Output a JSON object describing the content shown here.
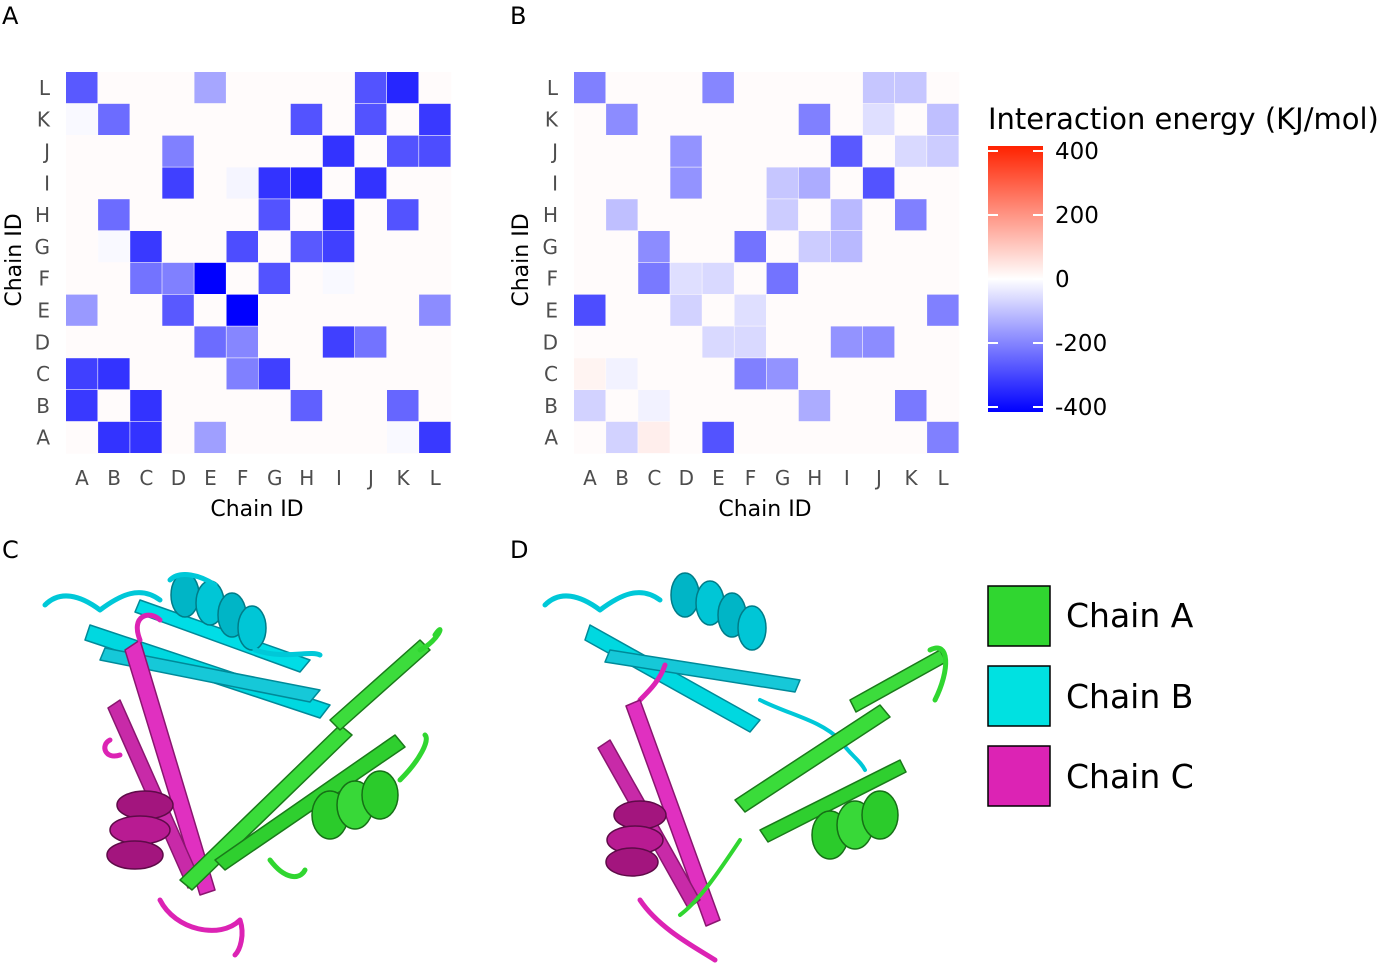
{
  "panels": {
    "a": "A",
    "b": "B",
    "c": "C",
    "d": "D"
  },
  "colorbar": {
    "title": "Interaction energy (KJ/mol)",
    "ticks": [
      "400",
      "200",
      "0",
      "-200",
      "-400"
    ],
    "colors": {
      "low": "#0000ff",
      "mid": "#ffffff",
      "high": "#ff2200"
    }
  },
  "legend": {
    "items": [
      {
        "label": "Chain A",
        "color": "#30d630"
      },
      {
        "label": "Chain B",
        "color": "#00e1e1"
      },
      {
        "label": "Chain C",
        "color": "#dc23b4"
      }
    ]
  },
  "chart_data": [
    {
      "type": "heatmap",
      "panel": "A",
      "xlabel": "Chain ID",
      "ylabel": "Chain ID",
      "categories": [
        "A",
        "B",
        "C",
        "D",
        "E",
        "F",
        "G",
        "H",
        "I",
        "J",
        "K",
        "L"
      ],
      "value_range": [
        -400,
        400
      ],
      "cells": [
        {
          "x": "A",
          "y": "L",
          "value": -260
        },
        {
          "x": "E",
          "y": "L",
          "value": -140
        },
        {
          "x": "J",
          "y": "L",
          "value": -270
        },
        {
          "x": "K",
          "y": "L",
          "value": -340
        },
        {
          "x": "A",
          "y": "K",
          "value": -10
        },
        {
          "x": "B",
          "y": "K",
          "value": -230
        },
        {
          "x": "H",
          "y": "K",
          "value": -270
        },
        {
          "x": "J",
          "y": "K",
          "value": -270
        },
        {
          "x": "L",
          "y": "K",
          "value": -310
        },
        {
          "x": "D",
          "y": "J",
          "value": -200
        },
        {
          "x": "I",
          "y": "J",
          "value": -320
        },
        {
          "x": "K",
          "y": "J",
          "value": -270
        },
        {
          "x": "L",
          "y": "J",
          "value": -280
        },
        {
          "x": "D",
          "y": "I",
          "value": -300
        },
        {
          "x": "F",
          "y": "I",
          "value": -15
        },
        {
          "x": "G",
          "y": "I",
          "value": -320
        },
        {
          "x": "H",
          "y": "I",
          "value": -340
        },
        {
          "x": "J",
          "y": "I",
          "value": -320
        },
        {
          "x": "B",
          "y": "H",
          "value": -230
        },
        {
          "x": "G",
          "y": "H",
          "value": -270
        },
        {
          "x": "I",
          "y": "H",
          "value": -330
        },
        {
          "x": "K",
          "y": "H",
          "value": -270
        },
        {
          "x": "B",
          "y": "G",
          "value": -10
        },
        {
          "x": "C",
          "y": "G",
          "value": -310
        },
        {
          "x": "F",
          "y": "G",
          "value": -280
        },
        {
          "x": "H",
          "y": "G",
          "value": -260
        },
        {
          "x": "I",
          "y": "G",
          "value": -300
        },
        {
          "x": "C",
          "y": "F",
          "value": -220
        },
        {
          "x": "D",
          "y": "F",
          "value": -200
        },
        {
          "x": "E",
          "y": "F",
          "value": -400
        },
        {
          "x": "G",
          "y": "F",
          "value": -270
        },
        {
          "x": "I",
          "y": "F",
          "value": -10
        },
        {
          "x": "A",
          "y": "E",
          "value": -160
        },
        {
          "x": "D",
          "y": "E",
          "value": -260
        },
        {
          "x": "F",
          "y": "E",
          "value": -400
        },
        {
          "x": "L",
          "y": "E",
          "value": -180
        },
        {
          "x": "E",
          "y": "D",
          "value": -230
        },
        {
          "x": "F",
          "y": "D",
          "value": -190
        },
        {
          "x": "I",
          "y": "D",
          "value": -300
        },
        {
          "x": "J",
          "y": "D",
          "value": -220
        },
        {
          "x": "A",
          "y": "C",
          "value": -300
        },
        {
          "x": "B",
          "y": "C",
          "value": -320
        },
        {
          "x": "F",
          "y": "C",
          "value": -200
        },
        {
          "x": "G",
          "y": "C",
          "value": -300
        },
        {
          "x": "A",
          "y": "B",
          "value": -310
        },
        {
          "x": "C",
          "y": "B",
          "value": -320
        },
        {
          "x": "H",
          "y": "B",
          "value": -250
        },
        {
          "x": "K",
          "y": "B",
          "value": -240
        },
        {
          "x": "B",
          "y": "A",
          "value": -320
        },
        {
          "x": "C",
          "y": "A",
          "value": -320
        },
        {
          "x": "E",
          "y": "A",
          "value": -150
        },
        {
          "x": "K",
          "y": "A",
          "value": -10
        },
        {
          "x": "L",
          "y": "A",
          "value": -310
        }
      ]
    },
    {
      "type": "heatmap",
      "panel": "B",
      "xlabel": "Chain ID",
      "ylabel": "Chain ID",
      "categories": [
        "A",
        "B",
        "C",
        "D",
        "E",
        "F",
        "G",
        "H",
        "I",
        "J",
        "K",
        "L"
      ],
      "value_range": [
        -400,
        400
      ],
      "cells": [
        {
          "x": "A",
          "y": "L",
          "value": -200
        },
        {
          "x": "E",
          "y": "L",
          "value": -190
        },
        {
          "x": "J",
          "y": "L",
          "value": -90
        },
        {
          "x": "K",
          "y": "L",
          "value": -90
        },
        {
          "x": "B",
          "y": "K",
          "value": -180
        },
        {
          "x": "H",
          "y": "K",
          "value": -200
        },
        {
          "x": "J",
          "y": "K",
          "value": -50
        },
        {
          "x": "L",
          "y": "K",
          "value": -100
        },
        {
          "x": "D",
          "y": "J",
          "value": -170
        },
        {
          "x": "I",
          "y": "J",
          "value": -260
        },
        {
          "x": "K",
          "y": "J",
          "value": -60
        },
        {
          "x": "L",
          "y": "J",
          "value": -80
        },
        {
          "x": "D",
          "y": "I",
          "value": -170
        },
        {
          "x": "G",
          "y": "I",
          "value": -90
        },
        {
          "x": "H",
          "y": "I",
          "value": -130
        },
        {
          "x": "J",
          "y": "I",
          "value": -270
        },
        {
          "x": "B",
          "y": "H",
          "value": -100
        },
        {
          "x": "G",
          "y": "H",
          "value": -80
        },
        {
          "x": "I",
          "y": "H",
          "value": -110
        },
        {
          "x": "K",
          "y": "H",
          "value": -200
        },
        {
          "x": "C",
          "y": "G",
          "value": -180
        },
        {
          "x": "F",
          "y": "G",
          "value": -220
        },
        {
          "x": "H",
          "y": "G",
          "value": -80
        },
        {
          "x": "I",
          "y": "G",
          "value": -110
        },
        {
          "x": "C",
          "y": "F",
          "value": -210
        },
        {
          "x": "D",
          "y": "F",
          "value": -50
        },
        {
          "x": "E",
          "y": "F",
          "value": -60
        },
        {
          "x": "G",
          "y": "F",
          "value": -220
        },
        {
          "x": "A",
          "y": "E",
          "value": -280
        },
        {
          "x": "D",
          "y": "E",
          "value": -70
        },
        {
          "x": "F",
          "y": "E",
          "value": -50
        },
        {
          "x": "L",
          "y": "E",
          "value": -200
        },
        {
          "x": "E",
          "y": "D",
          "value": -60
        },
        {
          "x": "F",
          "y": "D",
          "value": -60
        },
        {
          "x": "I",
          "y": "D",
          "value": -170
        },
        {
          "x": "J",
          "y": "D",
          "value": -180
        },
        {
          "x": "A",
          "y": "C",
          "value": 20
        },
        {
          "x": "B",
          "y": "C",
          "value": -20
        },
        {
          "x": "F",
          "y": "C",
          "value": -200
        },
        {
          "x": "G",
          "y": "C",
          "value": -170
        },
        {
          "x": "A",
          "y": "B",
          "value": -70
        },
        {
          "x": "C",
          "y": "B",
          "value": -20
        },
        {
          "x": "H",
          "y": "B",
          "value": -130
        },
        {
          "x": "K",
          "y": "B",
          "value": -210
        },
        {
          "x": "B",
          "y": "A",
          "value": -70
        },
        {
          "x": "C",
          "y": "A",
          "value": 30
        },
        {
          "x": "E",
          "y": "A",
          "value": -270
        },
        {
          "x": "L",
          "y": "A",
          "value": -200
        }
      ]
    }
  ]
}
